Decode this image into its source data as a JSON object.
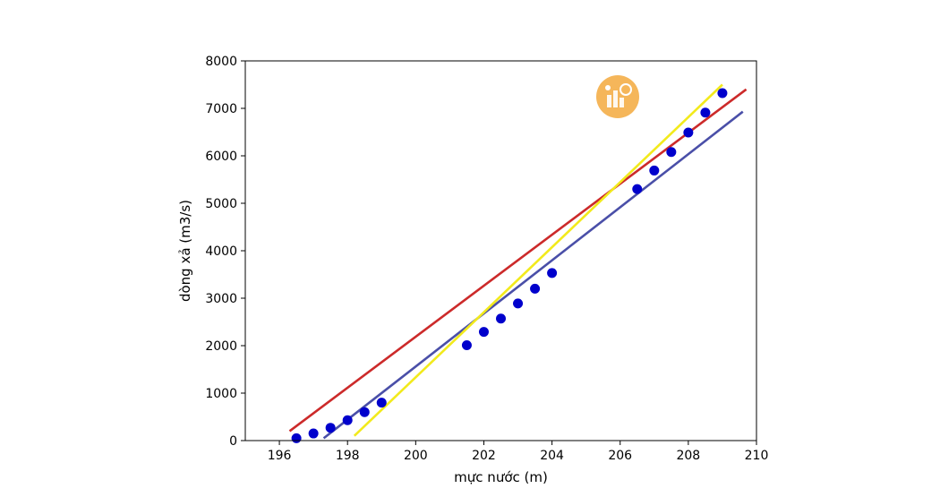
{
  "chart_data": {
    "type": "scatter",
    "xlabel": "mực nước (m)",
    "ylabel": "dòng xả (m3/s)",
    "xlim": [
      195,
      210
    ],
    "ylim": [
      0,
      8000
    ],
    "xticks": [
      "196",
      "198",
      "200",
      "202",
      "204",
      "206",
      "208",
      "210"
    ],
    "yticks": [
      "0",
      "1000",
      "2000",
      "3000",
      "4000",
      "5000",
      "6000",
      "7000",
      "8000"
    ],
    "grid": false,
    "points": {
      "color": "#0000cc",
      "x": [
        196.5,
        197.0,
        197.5,
        198.0,
        198.5,
        199.0,
        201.5,
        202.0,
        202.5,
        203.0,
        203.5,
        204.0,
        206.5,
        207.0,
        207.5,
        208.0,
        208.5,
        209.0
      ],
      "y": [
        50,
        150,
        270,
        430,
        600,
        800,
        2010,
        2290,
        2570,
        2890,
        3200,
        3530,
        5300,
        5690,
        6080,
        6490,
        6910,
        7320
      ]
    },
    "lines": [
      {
        "color": "#cc2a2a",
        "x": [
          196.3,
          209.7
        ],
        "y": [
          200,
          7400
        ]
      },
      {
        "color": "#4a4fa8",
        "x": [
          197.3,
          209.6
        ],
        "y": [
          50,
          6930
        ]
      },
      {
        "color": "#f2ea1c",
        "x": [
          198.2,
          209.0
        ],
        "y": [
          100,
          7500
        ]
      }
    ]
  },
  "logo": {
    "color": "#f5b65a",
    "icon": "chart-logo-icon"
  }
}
